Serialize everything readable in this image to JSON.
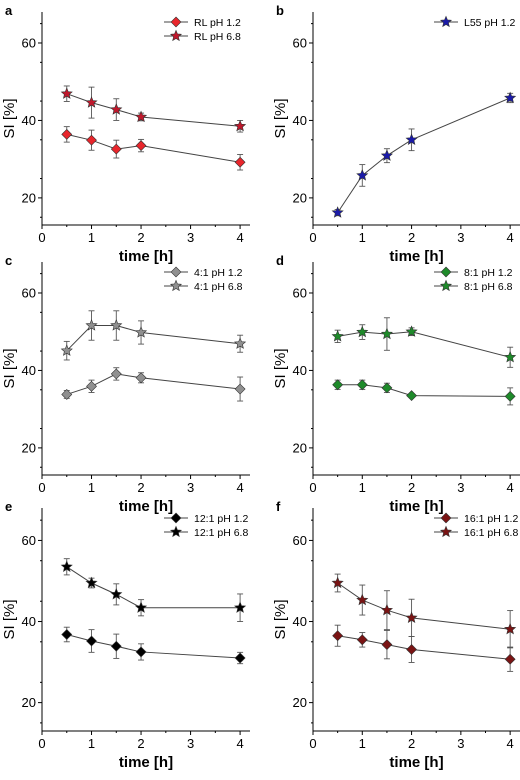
{
  "chart_data": [
    {
      "panel": "a",
      "type": "line",
      "xlabel": "time [h]",
      "ylabel": "SI [%]",
      "xlim": [
        0,
        4.2
      ],
      "ylim": [
        13,
        68
      ],
      "xticks": [
        0,
        1,
        2,
        3,
        4
      ],
      "yticks": [
        20,
        40,
        60
      ],
      "legend_position": "top-right",
      "series": [
        {
          "name": "RL pH 1.2",
          "marker": "diamond",
          "color": "#e8262c",
          "x": [
            0.5,
            1,
            1.5,
            2,
            4
          ],
          "y": [
            36.4,
            34.9,
            32.6,
            33.5,
            29.2
          ],
          "err": [
            2.0,
            2.6,
            2.3,
            1.6,
            2.0
          ]
        },
        {
          "name": "RL pH 6.8",
          "marker": "star",
          "color": "#c0182c",
          "x": [
            0.5,
            1,
            1.5,
            2,
            4
          ],
          "y": [
            46.9,
            44.6,
            42.8,
            40.9,
            38.5
          ],
          "err": [
            2.0,
            4.0,
            2.8,
            1.0,
            1.5
          ]
        }
      ]
    },
    {
      "panel": "b",
      "type": "line",
      "xlabel": "time [h]",
      "ylabel": "SI [%]",
      "xlim": [
        0,
        4.2
      ],
      "ylim": [
        13,
        68
      ],
      "xticks": [
        0,
        1,
        2,
        3,
        4
      ],
      "yticks": [
        20,
        40,
        60
      ],
      "legend_position": "top-right",
      "series": [
        {
          "name": "L55 pH 1.2",
          "marker": "star",
          "color": "#1a1aa8",
          "x": [
            0.5,
            1,
            1.5,
            2,
            4
          ],
          "y": [
            16.2,
            25.8,
            30.9,
            35.0,
            45.8
          ],
          "err": [
            0.8,
            2.8,
            1.8,
            2.8,
            1.2
          ]
        }
      ]
    },
    {
      "panel": "c",
      "type": "line",
      "xlabel": "time [h]",
      "ylabel": "SI [%]",
      "xlim": [
        0,
        4.2
      ],
      "ylim": [
        13,
        68
      ],
      "xticks": [
        0,
        1,
        2,
        3,
        4
      ],
      "yticks": [
        20,
        40,
        60
      ],
      "legend_position": "top-right",
      "series": [
        {
          "name": "4:1 pH 1.2",
          "marker": "diamond",
          "color": "#909090",
          "x": [
            0.5,
            1,
            1.5,
            2,
            4
          ],
          "y": [
            33.8,
            35.9,
            39.1,
            38.1,
            35.2
          ],
          "err": [
            1.0,
            1.6,
            1.6,
            1.3,
            3.1
          ]
        },
        {
          "name": "4:1 pH 6.8",
          "marker": "star",
          "color": "#909090",
          "x": [
            0.5,
            1,
            1.5,
            2,
            4
          ],
          "y": [
            45.1,
            51.6,
            51.6,
            49.8,
            46.9
          ],
          "err": [
            2.4,
            3.8,
            3.8,
            3.0,
            2.2
          ]
        }
      ]
    },
    {
      "panel": "d",
      "type": "line",
      "xlabel": "time [h]",
      "ylabel": "SI [%]",
      "xlim": [
        0,
        4.2
      ],
      "ylim": [
        13,
        68
      ],
      "xticks": [
        0,
        1,
        2,
        3,
        4
      ],
      "yticks": [
        20,
        40,
        60
      ],
      "legend_position": "top-right",
      "series": [
        {
          "name": "8:1 pH 1.2",
          "marker": "diamond",
          "color": "#1e8a2a",
          "x": [
            0.5,
            1,
            1.5,
            2,
            4
          ],
          "y": [
            36.3,
            36.3,
            35.5,
            33.5,
            33.3
          ],
          "err": [
            1.2,
            1.2,
            1.2,
            0.4,
            2.2
          ]
        },
        {
          "name": "8:1 pH 6.8",
          "marker": "star",
          "color": "#1e8a2a",
          "x": [
            0.5,
            1,
            1.5,
            2,
            4
          ],
          "y": [
            48.8,
            49.9,
            49.4,
            50.0,
            43.4
          ],
          "err": [
            1.6,
            1.9,
            4.2,
            1.0,
            2.6
          ]
        }
      ]
    },
    {
      "panel": "e",
      "type": "line",
      "xlabel": "time [h]",
      "ylabel": "SI [%]",
      "xlim": [
        0,
        4.2
      ],
      "ylim": [
        13,
        68
      ],
      "xticks": [
        0,
        1,
        2,
        3,
        4
      ],
      "yticks": [
        20,
        40,
        60
      ],
      "legend_position": "top-right",
      "series": [
        {
          "name": "12:1 pH 1.2",
          "marker": "diamond",
          "color": "#000000",
          "x": [
            0.5,
            1,
            1.5,
            2,
            4
          ],
          "y": [
            36.8,
            35.2,
            33.9,
            32.5,
            31.0
          ],
          "err": [
            1.8,
            2.8,
            3.0,
            2.0,
            1.4
          ]
        },
        {
          "name": "12:1 pH 6.8",
          "marker": "star",
          "color": "#000000",
          "x": [
            0.5,
            1,
            1.5,
            2,
            4
          ],
          "y": [
            53.5,
            49.5,
            46.7,
            43.4,
            43.4
          ],
          "err": [
            2.0,
            1.2,
            2.6,
            2.0,
            3.4
          ]
        }
      ]
    },
    {
      "panel": "f",
      "type": "line",
      "xlabel": "time [h]",
      "ylabel": "SI [%]",
      "xlim": [
        0,
        4.2
      ],
      "ylim": [
        13,
        68
      ],
      "xticks": [
        0,
        1,
        2,
        3,
        4
      ],
      "yticks": [
        20,
        40,
        60
      ],
      "legend_position": "top-right",
      "series": [
        {
          "name": "16:1 pH 1.2",
          "marker": "diamond",
          "color": "#7a1414",
          "x": [
            0.5,
            1,
            1.5,
            2,
            4
          ],
          "y": [
            36.5,
            35.5,
            34.3,
            33.1,
            30.7
          ],
          "err": [
            2.6,
            1.8,
            3.5,
            3.2,
            3.0
          ]
        },
        {
          "name": "16:1 pH 6.8",
          "marker": "star",
          "color": "#7a1414",
          "x": [
            0.5,
            1,
            1.5,
            2,
            4
          ],
          "y": [
            49.5,
            45.3,
            42.8,
            40.9,
            38.1
          ],
          "err": [
            2.2,
            3.7,
            4.8,
            4.6,
            4.6
          ]
        }
      ]
    }
  ]
}
